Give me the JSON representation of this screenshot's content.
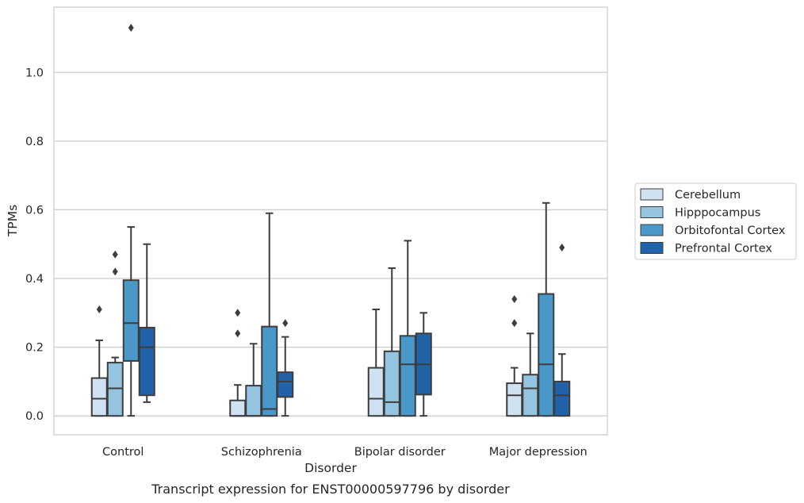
{
  "chart_data": {
    "type": "box",
    "xlabel": "Disorder",
    "ylabel": "TPMs",
    "caption": "Transcript expression for ENST00000597796 by disorder",
    "ylim": [
      -0.055,
      1.19
    ],
    "yticks": [
      0.0,
      0.2,
      0.4,
      0.6,
      0.8,
      1.0
    ],
    "ytick_labels": [
      "0.0",
      "0.2",
      "0.4",
      "0.6",
      "0.8",
      "1.0"
    ],
    "grid": "horizontal",
    "legend_position": "right",
    "categories": [
      "Control",
      "Schizophrenia",
      "Bipolar disorder",
      "Major depression"
    ],
    "series": [
      {
        "name": "Cerebellum",
        "color": "#d0e1f2",
        "boxes": [
          {
            "whislo": 0.0,
            "q1": 0.0,
            "med": 0.05,
            "q3": 0.11,
            "whishi": 0.22,
            "fliers": [
              0.31
            ]
          },
          {
            "whislo": 0.0,
            "q1": 0.0,
            "med": 0.0,
            "q3": 0.045,
            "whishi": 0.09,
            "fliers": [
              0.24,
              0.3
            ]
          },
          {
            "whislo": 0.0,
            "q1": 0.0,
            "med": 0.05,
            "q3": 0.14,
            "whishi": 0.31,
            "fliers": []
          },
          {
            "whislo": 0.0,
            "q1": 0.0,
            "med": 0.06,
            "q3": 0.095,
            "whishi": 0.14,
            "fliers": [
              0.27,
              0.34
            ]
          }
        ]
      },
      {
        "name": "Hipppocampus",
        "color": "#94c4df",
        "boxes": [
          {
            "whislo": 0.0,
            "q1": 0.0,
            "med": 0.08,
            "q3": 0.155,
            "whishi": 0.17,
            "fliers": [
              0.42,
              0.47
            ]
          },
          {
            "whislo": 0.0,
            "q1": 0.0,
            "med": 0.0,
            "q3": 0.088,
            "whishi": 0.21,
            "fliers": []
          },
          {
            "whislo": 0.0,
            "q1": 0.0,
            "med": 0.04,
            "q3": 0.188,
            "whishi": 0.43,
            "fliers": []
          },
          {
            "whislo": 0.0,
            "q1": 0.0,
            "med": 0.08,
            "q3": 0.12,
            "whishi": 0.24,
            "fliers": []
          }
        ]
      },
      {
        "name": "Orbitofontal Cortex",
        "color": "#4a98c9",
        "boxes": [
          {
            "whislo": 0.0,
            "q1": 0.16,
            "med": 0.27,
            "q3": 0.395,
            "whishi": 0.55,
            "fliers": [
              1.13
            ]
          },
          {
            "whislo": 0.0,
            "q1": 0.0,
            "med": 0.02,
            "q3": 0.26,
            "whishi": 0.59,
            "fliers": []
          },
          {
            "whislo": 0.0,
            "q1": 0.0,
            "med": 0.15,
            "q3": 0.233,
            "whishi": 0.51,
            "fliers": []
          },
          {
            "whislo": 0.0,
            "q1": 0.0,
            "med": 0.15,
            "q3": 0.355,
            "whishi": 0.62,
            "fliers": []
          }
        ]
      },
      {
        "name": "Prefrontal Cortex",
        "color": "#2163aa",
        "boxes": [
          {
            "whislo": 0.04,
            "q1": 0.06,
            "med": 0.2,
            "q3": 0.257,
            "whishi": 0.5,
            "fliers": []
          },
          {
            "whislo": 0.0,
            "q1": 0.055,
            "med": 0.1,
            "q3": 0.127,
            "whishi": 0.23,
            "fliers": [
              0.27
            ]
          },
          {
            "whislo": 0.0,
            "q1": 0.062,
            "med": 0.15,
            "q3": 0.24,
            "whishi": 0.3,
            "fliers": []
          },
          {
            "whislo": 0.0,
            "q1": 0.0,
            "med": 0.06,
            "q3": 0.1,
            "whishi": 0.18,
            "fliers": [
              0.49
            ]
          }
        ]
      }
    ]
  }
}
